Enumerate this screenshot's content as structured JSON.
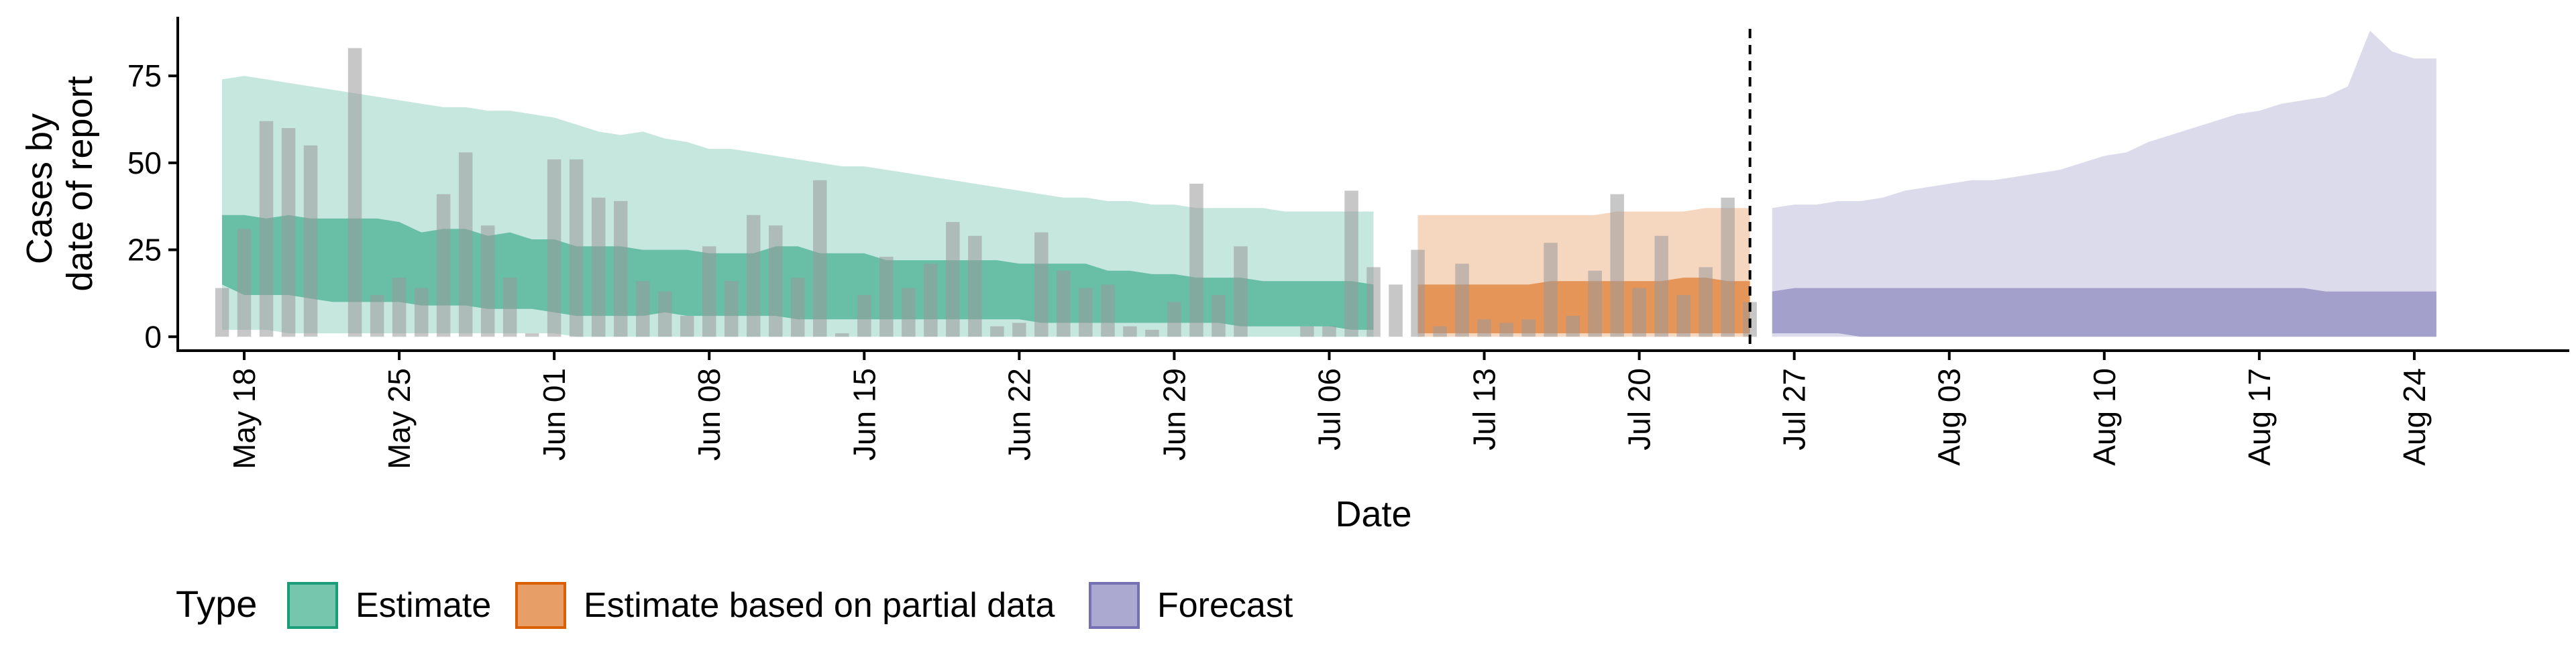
{
  "chart_data": {
    "type": "area",
    "xlabel": "Date",
    "ylabel_lines": [
      "Cases by",
      "date of report"
    ],
    "x_start": "2020-05-15",
    "x_end": "2020-08-31",
    "y_ticks": [
      0,
      25,
      50,
      75
    ],
    "ylim": [
      -4,
      92
    ],
    "x_ticks": [
      {
        "date": "2020-05-18",
        "label": "May 18"
      },
      {
        "date": "2020-05-25",
        "label": "May 25"
      },
      {
        "date": "2020-06-01",
        "label": "Jun 01"
      },
      {
        "date": "2020-06-08",
        "label": "Jun 08"
      },
      {
        "date": "2020-06-15",
        "label": "Jun 15"
      },
      {
        "date": "2020-06-22",
        "label": "Jun 22"
      },
      {
        "date": "2020-06-29",
        "label": "Jun 29"
      },
      {
        "date": "2020-07-06",
        "label": "Jul 06"
      },
      {
        "date": "2020-07-13",
        "label": "Jul 13"
      },
      {
        "date": "2020-07-20",
        "label": "Jul 20"
      },
      {
        "date": "2020-07-27",
        "label": "Jul 27"
      },
      {
        "date": "2020-08-03",
        "label": "Aug 03"
      },
      {
        "date": "2020-08-10",
        "label": "Aug 10"
      },
      {
        "date": "2020-08-17",
        "label": "Aug 17"
      },
      {
        "date": "2020-08-24",
        "label": "Aug 24"
      }
    ],
    "grid": false,
    "reference_line": {
      "date": "2020-07-25",
      "style": "dashed"
    },
    "reported_cases": {
      "start": "2020-05-17",
      "values": [
        14,
        31,
        62,
        60,
        55,
        0,
        83,
        12,
        17,
        14,
        41,
        53,
        32,
        17,
        1,
        51,
        51,
        40,
        39,
        16,
        13,
        6,
        26,
        16,
        35,
        32,
        17,
        45,
        1,
        12,
        23,
        14,
        21,
        33,
        29,
        3,
        4,
        30,
        19,
        14,
        15,
        3,
        2,
        10,
        44,
        12,
        26,
        0,
        0,
        3,
        3,
        42,
        20,
        15,
        25,
        3,
        21,
        5,
        4,
        5,
        27,
        6,
        19,
        41,
        14,
        29,
        12,
        20,
        40,
        10
      ],
      "color": "#999999"
    },
    "series": [
      {
        "name": "Estimate",
        "fill": "#1b9e77",
        "start": "2020-05-17",
        "inner_upper": [
          35,
          35,
          34,
          35,
          34,
          34,
          34,
          34,
          33,
          30,
          31,
          31,
          29,
          30,
          28,
          28,
          26,
          26,
          26,
          25,
          25,
          25,
          24,
          24,
          24,
          26,
          26,
          24,
          24,
          24,
          22,
          22,
          22,
          22,
          22,
          22,
          21,
          21,
          21,
          21,
          19,
          19,
          18,
          18,
          17,
          17,
          17,
          16,
          16,
          16,
          16,
          16,
          15
        ],
        "inner_lower": [
          15,
          12,
          12,
          12,
          11,
          10,
          10,
          10,
          10,
          9,
          9,
          9,
          8,
          8,
          8,
          7,
          6,
          6,
          6,
          6,
          7,
          6,
          6,
          6,
          6,
          6,
          5,
          5,
          5,
          5,
          5,
          5,
          5,
          5,
          5,
          5,
          5,
          4,
          4,
          4,
          4,
          4,
          4,
          4,
          4,
          4,
          3,
          3,
          3,
          3,
          3,
          2,
          2
        ],
        "outer_upper": [
          74,
          75,
          74,
          73,
          72,
          71,
          70,
          69,
          68,
          67,
          66,
          66,
          65,
          65,
          64,
          63,
          61,
          59,
          58,
          59,
          57,
          56,
          54,
          54,
          53,
          52,
          51,
          50,
          49,
          49,
          48,
          47,
          46,
          45,
          44,
          43,
          42,
          41,
          40,
          40,
          39,
          39,
          38,
          38,
          37,
          37,
          37,
          37,
          36,
          36,
          36,
          36,
          36
        ],
        "outer_lower": [
          2,
          2,
          2,
          1,
          1,
          1,
          1,
          1,
          1,
          1,
          1,
          1,
          1,
          1,
          1,
          1,
          0,
          0,
          0,
          0,
          0,
          0,
          0,
          0,
          0,
          0,
          0,
          0,
          0,
          0,
          0,
          0,
          0,
          0,
          0,
          0,
          0,
          0,
          0,
          0,
          0,
          0,
          0,
          0,
          0,
          0,
          0,
          0,
          0,
          0,
          0,
          0,
          0
        ]
      },
      {
        "name": "Estimate based on partial data",
        "fill": "#d95f02",
        "start": "2020-07-10",
        "inner_upper": [
          15,
          15,
          15,
          15,
          15,
          15,
          16,
          16,
          16,
          16,
          16,
          16,
          17,
          17,
          16,
          16
        ],
        "inner_lower": [
          1,
          1,
          1,
          1,
          1,
          1,
          1,
          1,
          1,
          1,
          1,
          1,
          1,
          1,
          1,
          1
        ],
        "outer_upper": [
          35,
          35,
          35,
          35,
          35,
          35,
          35,
          35,
          35,
          36,
          36,
          36,
          36,
          37,
          37,
          37
        ],
        "outer_lower": [
          0,
          0,
          0,
          0,
          0,
          0,
          0,
          0,
          0,
          0,
          0,
          0,
          0,
          0,
          0,
          0
        ]
      },
      {
        "name": "Forecast",
        "fill": "#7570b3",
        "start": "2020-07-26",
        "inner_upper": [
          13,
          14,
          14,
          14,
          14,
          14,
          14,
          14,
          14,
          14,
          14,
          14,
          14,
          14,
          14,
          14,
          14,
          14,
          14,
          14,
          14,
          14,
          14,
          14,
          14,
          13,
          13,
          13,
          13,
          13,
          13
        ],
        "inner_lower": [
          1,
          1,
          1,
          1,
          0,
          0,
          0,
          0,
          0,
          0,
          0,
          0,
          0,
          0,
          0,
          0,
          0,
          0,
          0,
          0,
          0,
          0,
          0,
          0,
          0,
          0,
          0,
          0,
          0,
          0,
          0
        ],
        "outer_upper": [
          37,
          38,
          38,
          39,
          39,
          40,
          42,
          43,
          44,
          45,
          45,
          46,
          47,
          48,
          50,
          52,
          53,
          56,
          58,
          60,
          62,
          64,
          65,
          67,
          68,
          69,
          72,
          88,
          82,
          80,
          80
        ],
        "outer_lower": [
          0,
          0,
          0,
          0,
          0,
          0,
          0,
          0,
          0,
          0,
          0,
          0,
          0,
          0,
          0,
          0,
          0,
          0,
          0,
          0,
          0,
          0,
          0,
          0,
          0,
          0,
          0,
          0,
          0,
          0,
          0
        ]
      }
    ],
    "legend": {
      "title": "Type",
      "position": "bottom-left",
      "items": [
        {
          "label": "Estimate",
          "fill": "#1b9e77"
        },
        {
          "label": "Estimate based on partial data",
          "fill": "#d95f02"
        },
        {
          "label": "Forecast",
          "fill": "#7570b3"
        }
      ]
    }
  }
}
